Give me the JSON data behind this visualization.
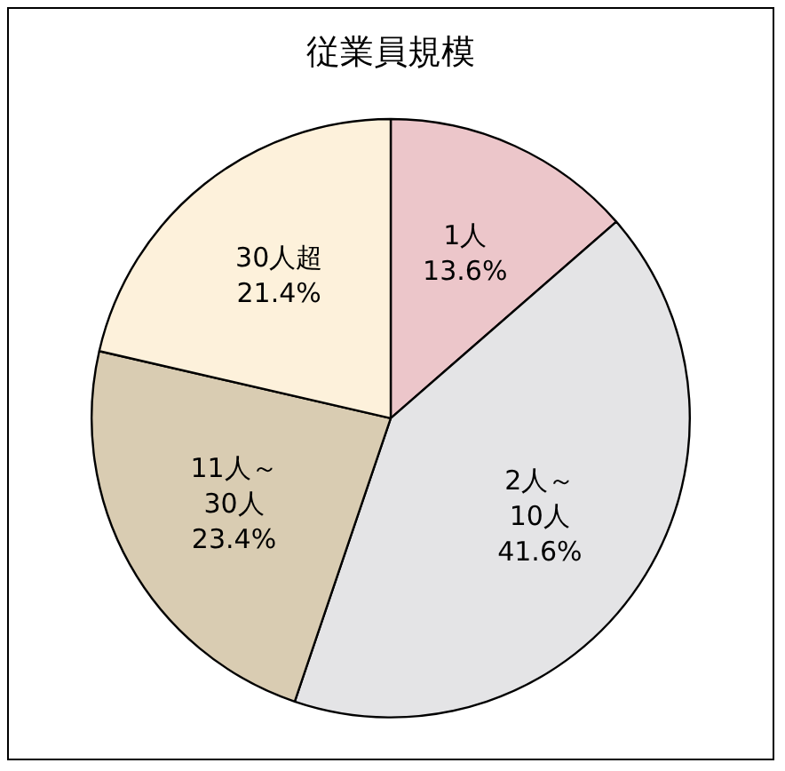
{
  "chart_data": {
    "type": "pie",
    "title": "従業員規模",
    "categories": [
      "1人",
      "2人～10人",
      "11人～30人",
      "30人超"
    ],
    "values": [
      13.6,
      41.6,
      23.4,
      21.4
    ],
    "value_labels": [
      "13.6%",
      "41.6%",
      "23.4%",
      "21.4%"
    ],
    "colors": [
      "#ecc6ca",
      "#e4e4e6",
      "#d9ccb2",
      "#fdf1db"
    ],
    "legend": false
  }
}
